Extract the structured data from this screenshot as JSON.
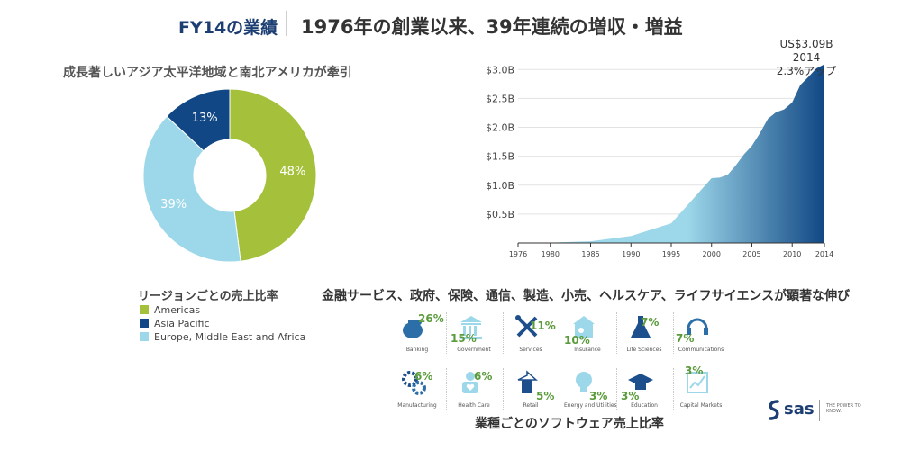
{
  "header": {
    "fy_label": "FY14の業績",
    "main_title": "1976年の創業以来、39年連続の増収・増益"
  },
  "pie_section": {
    "title": "成長著しいアジア太平洋地域と南北アメリカが牽引",
    "legend_title": "リージョンごとの売上比率",
    "legend": [
      {
        "label": "Americas",
        "color": "#a5c13b"
      },
      {
        "label": "Asia Pacific",
        "color": "#114784"
      },
      {
        "label": "Europe, Middle East and Africa",
        "color": "#9dd8ea"
      }
    ]
  },
  "chart_data": [
    {
      "type": "pie",
      "donut": true,
      "slices": [
        {
          "label": "Americas",
          "value": 48,
          "display": "48%",
          "color": "#a5c13b"
        },
        {
          "label": "Europe, Middle East and Africa",
          "value": 39,
          "display": "39%",
          "color": "#9dd8ea"
        },
        {
          "label": "Asia Pacific",
          "value": 13,
          "display": "13%",
          "color": "#114784"
        }
      ]
    },
    {
      "type": "area",
      "x": [
        1976,
        1980,
        1985,
        1990,
        1995,
        2000,
        2001,
        2002,
        2003,
        2004,
        2005,
        2006,
        2007,
        2008,
        2009,
        2010,
        2011,
        2012,
        2013,
        2014
      ],
      "values": [
        0.0,
        0.005,
        0.03,
        0.12,
        0.34,
        1.12,
        1.13,
        1.18,
        1.34,
        1.53,
        1.68,
        1.9,
        2.15,
        2.26,
        2.31,
        2.43,
        2.73,
        2.87,
        3.02,
        3.09
      ],
      "x_ticks": [
        "1976",
        "1980",
        "1985",
        "1990",
        "1995",
        "2000",
        "2005",
        "2010",
        "2014"
      ],
      "y_ticks": [
        "$0.5B",
        "$1.0B",
        "$1.5B",
        "$2.0B",
        "$2.5B",
        "$3.0B"
      ],
      "ylim": [
        0,
        3.3
      ],
      "grid": true,
      "gradient_colors": [
        "#9dd8ea",
        "#114784"
      ],
      "annotation": {
        "line1": "US$3.09B",
        "line2": "2014",
        "line3": "2.3%アップ"
      }
    }
  ],
  "industries": {
    "title": "金融サービス、政府、保険、通信、製造、小売、ヘルスケア、ライフサイエンスが顕著な伸び",
    "footer": "業種ごとのソフトウェア売上比率",
    "items": [
      {
        "name": "Banking",
        "pct": "26%",
        "icon": "bank-piggy-icon"
      },
      {
        "name": "Government",
        "pct": "15%",
        "icon": "government-building-icon"
      },
      {
        "name": "Services",
        "pct": "11%",
        "icon": "tools-icon"
      },
      {
        "name": "Insurance",
        "pct": "10%",
        "icon": "insurance-house-icon"
      },
      {
        "name": "Life Sciences",
        "pct": "7%",
        "icon": "flask-icon"
      },
      {
        "name": "Communications",
        "pct": "7%",
        "icon": "headset-icon"
      },
      {
        "name": "Manufacturing",
        "pct": "6%",
        "icon": "gears-icon"
      },
      {
        "name": "Health Care",
        "pct": "6%",
        "icon": "health-person-icon"
      },
      {
        "name": "Retail",
        "pct": "5%",
        "icon": "shirt-hanger-icon"
      },
      {
        "name": "Energy and Utilities",
        "pct": "3%",
        "icon": "lightbulb-icon"
      },
      {
        "name": "Education",
        "pct": "3%",
        "icon": "graduation-cap-icon"
      },
      {
        "name": "Capital Markets",
        "pct": "3%",
        "icon": "market-chart-icon"
      }
    ]
  },
  "logo": {
    "text": "sas",
    "tagline": "THE POWER TO KNOW."
  }
}
